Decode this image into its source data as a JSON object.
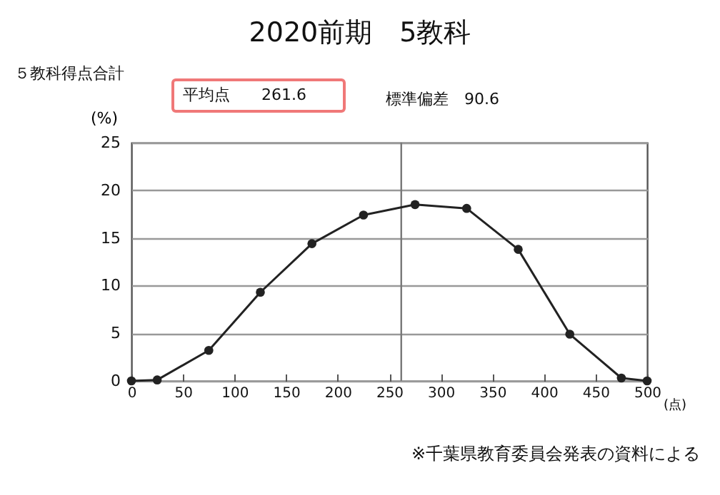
{
  "chart_data": {
    "type": "line",
    "title": "2020前期　5教科",
    "subtitle": "５教科得点合計",
    "xlabel": "(点)",
    "ylabel": "(%)",
    "x": [
      0,
      25,
      75,
      125,
      175,
      225,
      275,
      325,
      375,
      425,
      475,
      500
    ],
    "series": [
      {
        "color": "#222222",
        "values": [
          0,
          0.1,
          3.2,
          9.3,
          14.4,
          17.4,
          18.5,
          18.1,
          13.8,
          4.9,
          0.3,
          0
        ]
      }
    ],
    "xlim": [
      0,
      500
    ],
    "xticks": [
      0,
      50,
      100,
      150,
      200,
      250,
      300,
      350,
      400,
      450,
      500
    ],
    "ylim": [
      0,
      25
    ],
    "yticks": [
      0,
      5,
      10,
      15,
      20,
      25
    ],
    "grid": "y",
    "marker": "circle",
    "line_style": "solid",
    "ref_lines": [
      {
        "axis": "x",
        "value": 261.6,
        "label": null,
        "color": "#777777"
      }
    ],
    "annotations": [
      "平均点　　261.6",
      "標準偏差　90.6",
      "※千葉県教育委員会発表の資料による"
    ]
  }
}
